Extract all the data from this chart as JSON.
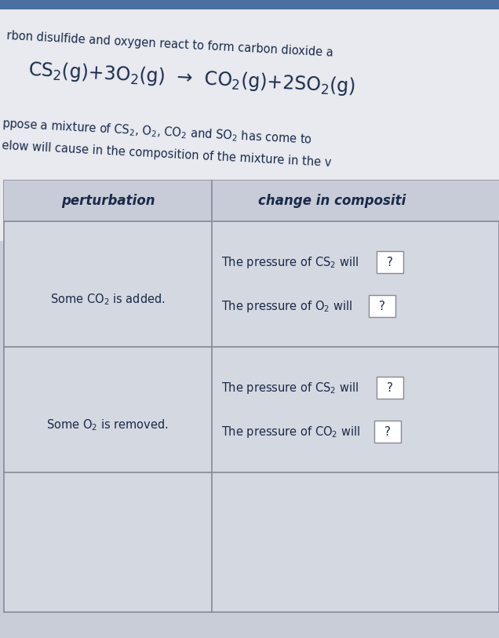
{
  "bg_color": "#c8cdd8",
  "top_section_bg": "#dde0e8",
  "table_bg": "#d4d8e0",
  "table_border": "#888899",
  "header_bg": "#c8ccd8",
  "cell_light": "#d0d4dc",
  "text_color": "#1a2a4a",
  "text_color_eq": "#1a2a4a",
  "top_blue_bar": "#4a6fa0",
  "white_box": "#ffffff",
  "title_line1": "rbon disulfide and oxygen react to form carbon dioxide a",
  "eq_line": "CS$_2$(g)+3O$_2$(g)  →  CO$_2$(g)+2SO$_2$(g)",
  "text_line1": "ppose a mixture of CS$_2$, O$_2$, CO$_2$ and SO$_2$ has come to",
  "text_line2": "elow will cause in the composition of the mixture in the v",
  "col1_header": "perturbation",
  "col2_header": "change in compositi",
  "row1_col1": "Some CO$_2$ is added.",
  "row1_col2_line1": "The pressure of CS$_2$ will",
  "row1_col2_line2": "The pressure of O$_2$ will",
  "row2_col1": "Some O$_2$ is removed.",
  "row2_col2_line1": "The pressure of CS$_2$ will",
  "row2_col2_line2": "The pressure of CO$_2$ will",
  "qmark": "?"
}
